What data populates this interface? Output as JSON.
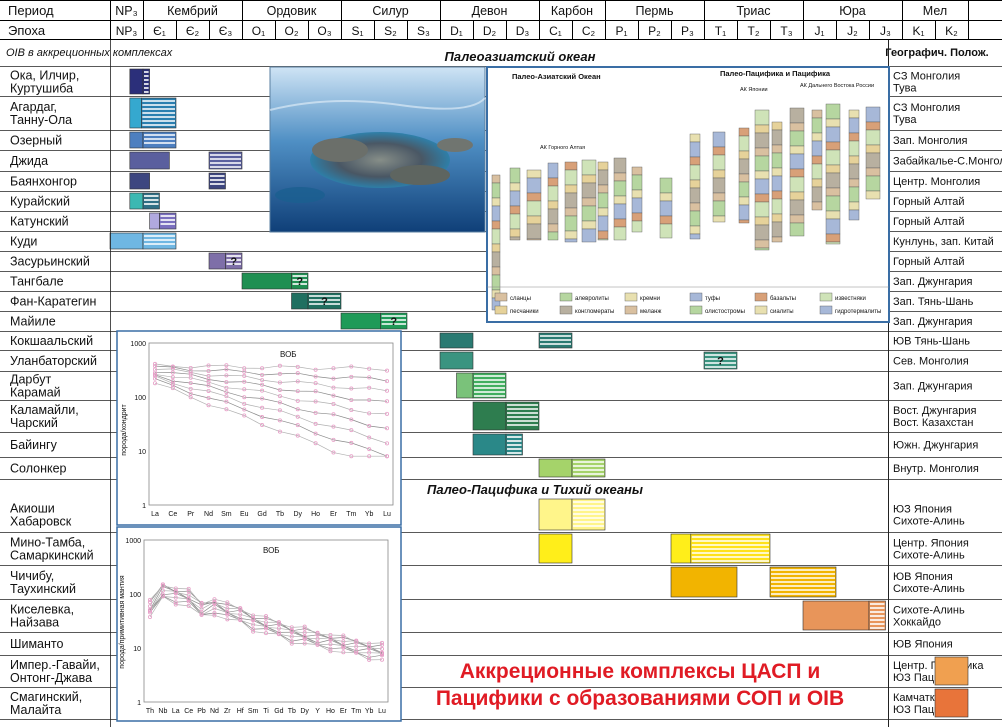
{
  "header": {
    "period_label": "Период",
    "epoch_label": "Эпоха",
    "oib_label": "OIB в аккреционных комплексах",
    "geo_label": "Географич. Полож.",
    "periods": [
      {
        "label": "NP₃",
        "span": [
          0,
          1
        ]
      },
      {
        "label": "Кембрий",
        "span": [
          1,
          4
        ]
      },
      {
        "label": "Ордовик",
        "span": [
          4,
          7
        ]
      },
      {
        "label": "Силур",
        "span": [
          7,
          10
        ]
      },
      {
        "label": "Девон",
        "span": [
          10,
          13
        ]
      },
      {
        "label": "Карбон",
        "span": [
          13,
          15
        ]
      },
      {
        "label": "Пермь",
        "span": [
          15,
          18
        ]
      },
      {
        "label": "Триас",
        "span": [
          18,
          21
        ]
      },
      {
        "label": "Юра",
        "span": [
          21,
          24
        ]
      },
      {
        "label": "Мел",
        "span": [
          24,
          26
        ]
      }
    ],
    "epochs": [
      "NP₃",
      "Є₁",
      "Є₂",
      "Є₃",
      "O₁",
      "O₂",
      "O₃",
      "S₁",
      "S₂",
      "S₃",
      "D₁",
      "D₂",
      "D₃",
      "C₁",
      "C₂",
      "P₁",
      "P₂",
      "P₃",
      "T₁",
      "T₂",
      "T₃",
      "J₁",
      "J₂",
      "J₃",
      "K₁",
      "K₂"
    ]
  },
  "sections": {
    "paleoasian": "Палеоазиатский океан",
    "paleopacific": "Палео-Пацифика и Тихий океаны"
  },
  "rows": [
    {
      "name": "Ока, Илчир,\nКуртушиба",
      "geo": "СЗ Монголия\nТува",
      "group": "pa"
    },
    {
      "name": "Агардаг,\nТанну-Ола",
      "geo": "СЗ Монголия\nТува",
      "group": "pa"
    },
    {
      "name": "Озерный",
      "geo": "Зап. Монголия",
      "group": "pa"
    },
    {
      "name": "Джида",
      "geo": "Забайкалье-С.Монголия",
      "group": "pa"
    },
    {
      "name": "Баянхонгор",
      "geo": "Центр. Монголия",
      "group": "pa"
    },
    {
      "name": "Курайский",
      "geo": "Горный Алтай",
      "group": "pa"
    },
    {
      "name": "Катунский",
      "geo": "Горный Алтай",
      "group": "pa"
    },
    {
      "name": "Куди",
      "geo": "Кунлунь, зап. Китай",
      "group": "pa"
    },
    {
      "name": "Засурьинский",
      "geo": "Горный Алтай",
      "group": "pa"
    },
    {
      "name": "Тангбале",
      "geo": "Зап. Джунгария",
      "group": "pa"
    },
    {
      "name": "Фан-Каратегин",
      "geo": "Зап. Тянь-Шань",
      "group": "pa"
    },
    {
      "name": "Майиле",
      "geo": "Зап. Джунгария",
      "group": "pa"
    },
    {
      "name": "Кокшаальский",
      "geo": "ЮВ Тянь-Шань",
      "group": "pa"
    },
    {
      "name": "Уланбаторский",
      "geo": "Сев. Монголия",
      "group": "pa"
    },
    {
      "name": "Дарбут\nКарамай",
      "geo": "Зап. Джунгария",
      "group": "pa"
    },
    {
      "name": "Каламайли,\nЧарский",
      "geo": "Вост. Джунгария\nВост. Казахстан",
      "group": "pa"
    },
    {
      "name": "Байингу",
      "geo": "Южн. Джунгария",
      "group": "pa"
    },
    {
      "name": "Солонкер",
      "geo": "Внутр. Монголия",
      "group": "pa"
    },
    {
      "name": "Акиоши\nХабаровск",
      "geo": "ЮЗ Япония\nСихоте-Алинь",
      "group": "pp"
    },
    {
      "name": "Мино-Тамба,\nСамаркинский",
      "geo": "Центр. Япония\nСихоте-Алинь",
      "group": "pp"
    },
    {
      "name": "Чичибу,\nТаухинский",
      "geo": "ЮВ Япония\nСихоте-Алинь",
      "group": "pp"
    },
    {
      "name": "Киселевка,\nНайзава",
      "geo": "Сихоте-Алинь\nХоккайдо",
      "group": "pp"
    },
    {
      "name": "Шиманто",
      "geo": "ЮВ Япония",
      "group": "pp"
    },
    {
      "name": "Импер.-Гавайи,\nОнтонг-Джава",
      "geo": "Центр. Пацифика\nЮЗ Пацифика",
      "group": "pp"
    },
    {
      "name": "Смагинский,\nМалайта",
      "geo": "Камчатка\nЮЗ Пацифика",
      "group": "pp"
    }
  ],
  "bars": [
    {
      "row": 0,
      "from": 0.6,
      "to": 1.0,
      "color": "#2b2f7a",
      "style": "solid"
    },
    {
      "row": 0,
      "from": 1.0,
      "to": 1.2,
      "color": "#2b2f7a",
      "style": "striped"
    },
    {
      "row": 1,
      "from": 0.6,
      "to": 0.95,
      "color": "#35a8cf",
      "style": "solid"
    },
    {
      "row": 1,
      "from": 0.95,
      "to": 2.0,
      "color": "#2a7fb0",
      "style": "striped"
    },
    {
      "row": 2,
      "from": 0.6,
      "to": 1.0,
      "color": "#4d7fc0",
      "style": "solid"
    },
    {
      "row": 2,
      "from": 1.0,
      "to": 2.0,
      "color": "#4d7fc0",
      "style": "striped"
    },
    {
      "row": 3,
      "from": 0.6,
      "to": 1.8,
      "color": "#5a5f9e",
      "style": "solid"
    },
    {
      "row": 3,
      "from": 3.0,
      "to": 4.0,
      "color": "#5a5f9e",
      "style": "striped"
    },
    {
      "row": 4,
      "from": 0.6,
      "to": 1.2,
      "color": "#3d4680",
      "style": "solid"
    },
    {
      "row": 4,
      "from": 3.0,
      "to": 3.5,
      "color": "#3d4680",
      "style": "striped"
    },
    {
      "row": 5,
      "from": 0.6,
      "to": 1.0,
      "color": "#3cb8b2",
      "style": "solid"
    },
    {
      "row": 5,
      "from": 1.0,
      "to": 1.5,
      "color": "#2f6f86",
      "style": "striped"
    },
    {
      "row": 6,
      "from": 1.2,
      "to": 1.5,
      "color": "#b0a9df",
      "style": "solid"
    },
    {
      "row": 6,
      "from": 1.5,
      "to": 2.0,
      "color": "#7a6fbf",
      "style": "striped"
    },
    {
      "row": 7,
      "from": 0.0,
      "to": 1.0,
      "color": "#6fb7e3",
      "style": "solid"
    },
    {
      "row": 7,
      "from": 1.0,
      "to": 2.0,
      "color": "#6fb7e3",
      "style": "striped"
    },
    {
      "row": 8,
      "from": 3.0,
      "to": 3.5,
      "color": "#7e6fa8",
      "style": "solid"
    },
    {
      "row": 8,
      "from": 3.5,
      "to": 4.0,
      "color": "#7e6fa8",
      "style": "striped",
      "mark": "?"
    },
    {
      "row": 9,
      "from": 4.0,
      "to": 5.5,
      "color": "#1f8f52",
      "style": "solid"
    },
    {
      "row": 9,
      "from": 5.5,
      "to": 6.0,
      "color": "#1f8f52",
      "style": "striped",
      "mark": "?"
    },
    {
      "row": 10,
      "from": 5.5,
      "to": 6.0,
      "color": "#1f6f60",
      "style": "solid"
    },
    {
      "row": 10,
      "from": 6.0,
      "to": 7.0,
      "color": "#1f6f60",
      "style": "striped",
      "mark": "?"
    },
    {
      "row": 11,
      "from": 7.0,
      "to": 8.2,
      "color": "#1f9a58",
      "style": "solid"
    },
    {
      "row": 11,
      "from": 8.2,
      "to": 9.0,
      "color": "#1f9a58",
      "style": "striped",
      "mark": "?"
    },
    {
      "row": 12,
      "from": 10.0,
      "to": 11.0,
      "color": "#2a7a72",
      "style": "solid"
    },
    {
      "row": 12,
      "from": 13.0,
      "to": 14.0,
      "color": "#2a7a72",
      "style": "striped"
    },
    {
      "row": 13,
      "from": 10.0,
      "to": 11.0,
      "color": "#3a9480",
      "style": "solid"
    },
    {
      "row": 13,
      "from": 18.0,
      "to": 19.0,
      "color": "#3a9480",
      "style": "striped",
      "mark": "?"
    },
    {
      "row": 14,
      "from": 10.5,
      "to": 11.0,
      "color": "#7ac27a",
      "style": "solid"
    },
    {
      "row": 14,
      "from": 11.0,
      "to": 12.0,
      "color": "#3fae5e",
      "style": "striped"
    },
    {
      "row": 15,
      "from": 11.0,
      "to": 12.0,
      "color": "#2e7d4f",
      "style": "solid"
    },
    {
      "row": 15,
      "from": 12.0,
      "to": 13.0,
      "color": "#2e7d4f",
      "style": "striped"
    },
    {
      "row": 16,
      "from": 11.0,
      "to": 12.0,
      "color": "#2a8888",
      "style": "solid"
    },
    {
      "row": 16,
      "from": 12.0,
      "to": 12.5,
      "color": "#2a8888",
      "style": "striped"
    },
    {
      "row": 17,
      "from": 13.0,
      "to": 14.0,
      "color": "#a5d36a",
      "style": "solid"
    },
    {
      "row": 17,
      "from": 14.0,
      "to": 15.0,
      "color": "#a5d36a",
      "style": "striped"
    },
    {
      "row": 18,
      "from": 13.0,
      "to": 14.0,
      "color": "#fff58a",
      "style": "solid"
    },
    {
      "row": 18,
      "from": 14.0,
      "to": 15.0,
      "color": "#fff58a",
      "style": "striped"
    },
    {
      "row": 19,
      "from": 13.0,
      "to": 14.0,
      "color": "#ffee1a",
      "style": "solid"
    },
    {
      "row": 19,
      "from": 17.0,
      "to": 17.6,
      "color": "#ffee1a",
      "style": "solid"
    },
    {
      "row": 19,
      "from": 17.6,
      "to": 20.0,
      "color": "#ffe11a",
      "style": "striped"
    },
    {
      "row": 20,
      "from": 17.0,
      "to": 19.0,
      "color": "#f2b400",
      "style": "solid"
    },
    {
      "row": 20,
      "from": 20.0,
      "to": 22.0,
      "color": "#f2b400",
      "style": "striped"
    },
    {
      "row": 21,
      "from": 21.0,
      "to": 23.0,
      "color": "#e8955a",
      "style": "solid"
    },
    {
      "row": 21,
      "from": 23.0,
      "to": 23.5,
      "color": "#e8955a",
      "style": "striped"
    },
    {
      "row": 23,
      "from": 25.0,
      "to": 26.0,
      "color": "#f0a050",
      "style": "solid"
    },
    {
      "row": 24,
      "from": 25.0,
      "to": 26.0,
      "color": "#e8743a",
      "style": "solid"
    }
  ],
  "inset_pacific": {
    "left_title": "Палео-Азиатский Океан",
    "right_title": "Палео-Пацифика и Пацифика",
    "sub_gorny_altai": "АК Горного Алтая",
    "sub_japan": "АК Японии",
    "sub_far_east": "АК Дальнего Востока России",
    "legend": [
      "сланцы",
      "алевролиты",
      "кремни",
      "туфы",
      "базальты",
      "известняки",
      "песчаники",
      "конгломераты",
      "меланж",
      "олистостромы",
      "сиалиты",
      "гидротермалиты"
    ]
  },
  "spider1": {
    "title": "ВОБ",
    "ylabel": "порода/хондрит",
    "yticks": [
      "1000",
      "100",
      "10",
      "1"
    ],
    "elements": [
      "La",
      "Ce",
      "Pr",
      "Nd",
      "Sm",
      "Eu",
      "Gd",
      "Tb",
      "Dy",
      "Ho",
      "Er",
      "Tm",
      "Yb",
      "Lu"
    ]
  },
  "spider2": {
    "title": "ВОБ",
    "ylabel": "порода/примитивная мантия",
    "yticks": [
      "1000",
      "100",
      "10",
      "1"
    ],
    "elements": [
      "Th",
      "Nb",
      "La",
      "Ce",
      "Pb",
      "Nd",
      "Zr",
      "Hf",
      "Sm",
      "Ti",
      "Gd",
      "Tb",
      "Dy",
      "Y",
      "Ho",
      "Er",
      "Tm",
      "Yb",
      "Lu"
    ]
  },
  "footer": {
    "line1": "Аккреционные комплексы ЦАСП и",
    "line2": "Пацифики с образованиями СОП и OIB",
    "color": "#e01b24"
  }
}
